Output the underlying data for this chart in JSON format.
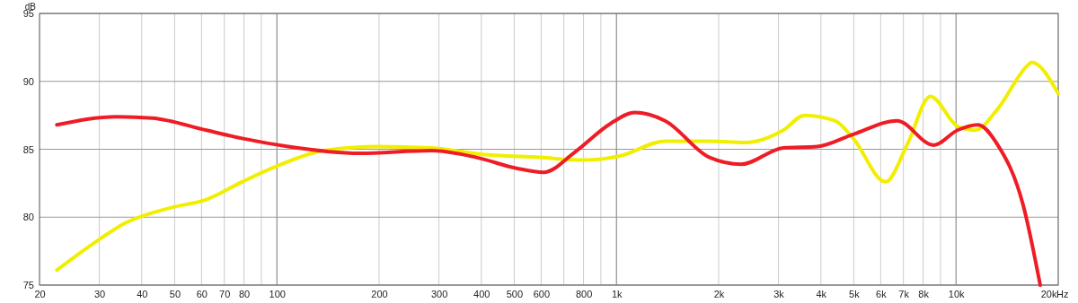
{
  "chart_data": {
    "type": "line",
    "ylabel": "dB",
    "log": "x",
    "grid": true,
    "marker": "none",
    "line_style": "solid",
    "xlim": [
      20,
      20000
    ],
    "ylim": [
      75,
      95
    ],
    "xticks": [
      20,
      30,
      40,
      50,
      60,
      70,
      80,
      {
        "value": 90,
        "label": null
      },
      100,
      200,
      300,
      400,
      500,
      600,
      {
        "value": 700,
        "label": null
      },
      800,
      {
        "value": 900,
        "label": null
      },
      {
        "value": 1000,
        "label": "1k"
      },
      {
        "value": 2000,
        "label": "2k"
      },
      {
        "value": 3000,
        "label": "3k"
      },
      {
        "value": 4000,
        "label": "4k"
      },
      {
        "value": 5000,
        "label": "5k"
      },
      {
        "value": 6000,
        "label": "6k"
      },
      {
        "value": 7000,
        "label": "7k"
      },
      {
        "value": 8000,
        "label": "8k"
      },
      {
        "value": 9000,
        "label": null
      },
      {
        "value": 10000,
        "label": "10k"
      },
      {
        "value": 20000,
        "label": "20k"
      }
    ],
    "xlabel": "Hz",
    "yticks": [
      75,
      80,
      85,
      90,
      95
    ],
    "series": [
      {
        "color": "#f2ee00",
        "x": [
          22.5,
          28.2,
          36,
          48.8,
          62,
          79,
          101,
          137,
          198,
          285,
          410,
          592,
          803,
          1024,
          1390,
          1880,
          2400,
          3100,
          3580,
          4400,
          4980,
          6200,
          7200,
          8400,
          10100,
          11400,
          13200,
          16300,
          16700,
          20000
        ],
        "values": [
          76.1,
          77.9,
          79.6,
          80.7,
          81.3,
          82.6,
          83.8,
          84.9,
          85.2,
          85.1,
          84.6,
          84.4,
          84.2,
          84.5,
          85.6,
          85.6,
          85.5,
          86.4,
          87.5,
          87.1,
          85.8,
          82.6,
          85.4,
          88.9,
          86.7,
          86.4,
          87.9,
          91.2,
          91.4,
          89.1
        ]
      },
      {
        "color": "#ee1c25",
        "x": [
          22.5,
          33.8,
          43,
          62,
          79,
          108,
          175,
          285,
          387,
          508,
          610,
          755,
          962,
          1130,
          1390,
          1880,
          2330,
          3100,
          3900,
          4980,
          6700,
          8600,
          10100,
          11600,
          13200,
          15800,
          17700
        ],
        "values": [
          86.8,
          87.4,
          87.3,
          86.4,
          85.8,
          85.2,
          84.7,
          84.9,
          84.4,
          83.6,
          83.3,
          84.8,
          86.9,
          87.7,
          87.1,
          84.4,
          83.9,
          85.1,
          85.2,
          86.1,
          87.1,
          85.3,
          86.4,
          86.8,
          85.4,
          80.8,
          75
        ]
      }
    ]
  }
}
